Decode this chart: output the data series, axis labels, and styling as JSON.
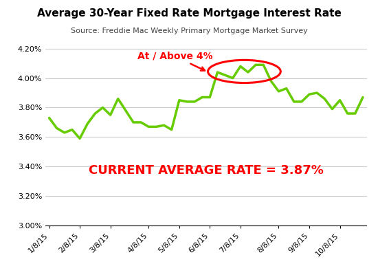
{
  "title": "Average 30-Year Fixed Rate Mortgage Interest Rate",
  "subtitle": "Source: Freddie Mac Weekly Primary Mortgage Market Survey",
  "current_rate_text": "CURRENT AVERAGE RATE = 3.87%",
  "annotation_text": "At / Above 4%",
  "line_color": "#66cc00",
  "line_width": 2.5,
  "annotation_color": "red",
  "background_color": "#ffffff",
  "xlabels": [
    "1/8/15",
    "2/8/15",
    "3/8/15",
    "4/8/15",
    "5/8/15",
    "6/8/15",
    "7/8/15",
    "8/8/15",
    "9/8/15",
    "10/8/15"
  ],
  "ylim": [
    3.0,
    4.25
  ],
  "yticks": [
    3.0,
    3.2,
    3.4,
    3.6,
    3.8,
    4.0,
    4.2
  ],
  "x_indices": [
    0,
    1,
    2,
    3,
    4,
    5,
    6,
    7,
    8,
    9,
    10,
    11,
    12,
    13,
    14,
    15,
    16,
    17,
    18,
    19,
    20,
    21,
    22,
    23,
    24,
    25,
    26,
    27,
    28,
    29,
    30,
    31,
    32,
    33,
    34,
    35,
    36,
    37,
    38,
    39,
    40,
    41
  ],
  "tick_indices": [
    0,
    4,
    8,
    13,
    17,
    21,
    25,
    30,
    34,
    38
  ],
  "values": [
    3.73,
    3.66,
    3.63,
    3.65,
    3.59,
    3.69,
    3.76,
    3.8,
    3.75,
    3.86,
    3.78,
    3.7,
    3.7,
    3.67,
    3.67,
    3.68,
    3.65,
    3.85,
    3.84,
    3.84,
    3.87,
    3.87,
    4.04,
    4.02,
    4.0,
    4.08,
    4.04,
    4.09,
    4.09,
    3.98,
    3.91,
    3.93,
    3.84,
    3.84,
    3.89,
    3.9,
    3.86,
    3.79,
    3.85,
    3.76,
    3.76,
    3.87
  ]
}
